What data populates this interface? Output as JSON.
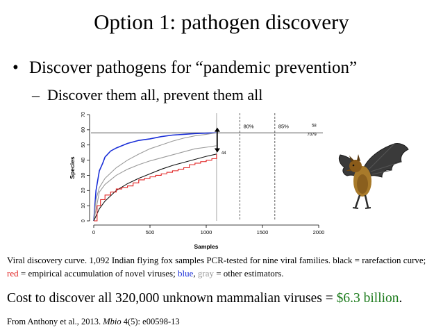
{
  "slide": {
    "title": "Option 1: pathogen discovery",
    "bullet": "Discover pathogens for “pandemic prevention”",
    "bullet_marker": "•",
    "sub_bullet": "Discover them all, prevent them all",
    "sub_marker": "–"
  },
  "caption": {
    "part1": "Viral discovery curve.  1,092 Indian flying fox samples PCR-tested for nine viral families.  black = rarefaction curve; ",
    "red_word": "red",
    "part2": " = empirical accumulation of novel viruses; ",
    "blue_word": "blue",
    "part3": ", ",
    "gray_word": "gray",
    "part4": " = other estimators."
  },
  "cost": {
    "text": "Cost to discover all 320,000 unknown mammalian viruses = ",
    "amount": "$6.3 billion",
    "end": ".",
    "amount_color": "#1a7a1a"
  },
  "reference": {
    "text1": "From Anthony et al., 2013.  ",
    "journal": "Mbio",
    "text2": " 4(5): e00598-13"
  },
  "image": {
    "icon": "bat-illustration"
  },
  "colors": {
    "red": "#e02020",
    "blue": "#1a2fd8",
    "gray": "#9a9a9a",
    "green": "#1a7a1a"
  },
  "chart_data": {
    "type": "line",
    "xlabel": "Samples",
    "ylabel": "Species",
    "xlim": [
      0,
      2000
    ],
    "ylim": [
      0,
      70
    ],
    "xticks": [
      0,
      500,
      1000,
      1500,
      2000
    ],
    "yticks": [
      0,
      10,
      20,
      30,
      40,
      50,
      60,
      70
    ],
    "grid": false,
    "hline": 58,
    "vlines": [
      {
        "x": 1092,
        "style": "solid",
        "label": ""
      },
      {
        "x": 1300,
        "style": "dashed",
        "label": "80%"
      },
      {
        "x": 1610,
        "style": "dashed",
        "label": "85%"
      }
    ],
    "annotations": [
      {
        "text": "58",
        "x": 1980,
        "y": 62
      },
      {
        "text": "7079",
        "x": 1980,
        "y": 56
      },
      {
        "text": "44",
        "x": 1135,
        "y": 44
      }
    ],
    "series": [
      {
        "color": "blue",
        "x": [
          0,
          20,
          50,
          80,
          100,
          150,
          200,
          300,
          400,
          500,
          600,
          700,
          800,
          900,
          1000,
          1092
        ],
        "y": [
          0,
          20,
          33,
          38,
          42,
          46,
          48,
          51,
          53,
          54,
          55.5,
          56.5,
          57,
          57.5,
          57.8,
          58
        ]
      },
      {
        "color": "gray",
        "x": [
          0,
          20,
          50,
          100,
          200,
          300,
          400,
          500,
          600,
          700,
          800,
          900,
          1000,
          1092
        ],
        "y": [
          0,
          14,
          22,
          28,
          35,
          40,
          44,
          47.5,
          50,
          52.5,
          54.5,
          56,
          57,
          58
        ]
      },
      {
        "color": "gray",
        "x": [
          0,
          50,
          100,
          200,
          300,
          400,
          500,
          600,
          700,
          800,
          900,
          1000,
          1092
        ],
        "y": [
          0,
          19,
          24,
          30,
          34,
          37,
          39.5,
          41.5,
          43.5,
          45.5,
          47.5,
          48.5,
          49.5
        ]
      },
      {
        "color": "black",
        "x": [
          0,
          50,
          100,
          200,
          300,
          400,
          500,
          600,
          700,
          800,
          900,
          1000,
          1092
        ],
        "y": [
          0,
          8,
          13,
          20,
          24.5,
          28,
          31,
          34,
          36.5,
          38.5,
          40.5,
          42.5,
          44
        ]
      },
      {
        "color": "red",
        "x": [
          0,
          30,
          60,
          100,
          150,
          200,
          250,
          300,
          350,
          400,
          450,
          500,
          550,
          600,
          650,
          700,
          750,
          800,
          850,
          900,
          950,
          1000,
          1050,
          1092
        ],
        "y": [
          0,
          10,
          14,
          17,
          19,
          21,
          22,
          23,
          25,
          27,
          28,
          29,
          30,
          31,
          32,
          33,
          34,
          35,
          37,
          38,
          39,
          40,
          41,
          44
        ]
      }
    ]
  }
}
